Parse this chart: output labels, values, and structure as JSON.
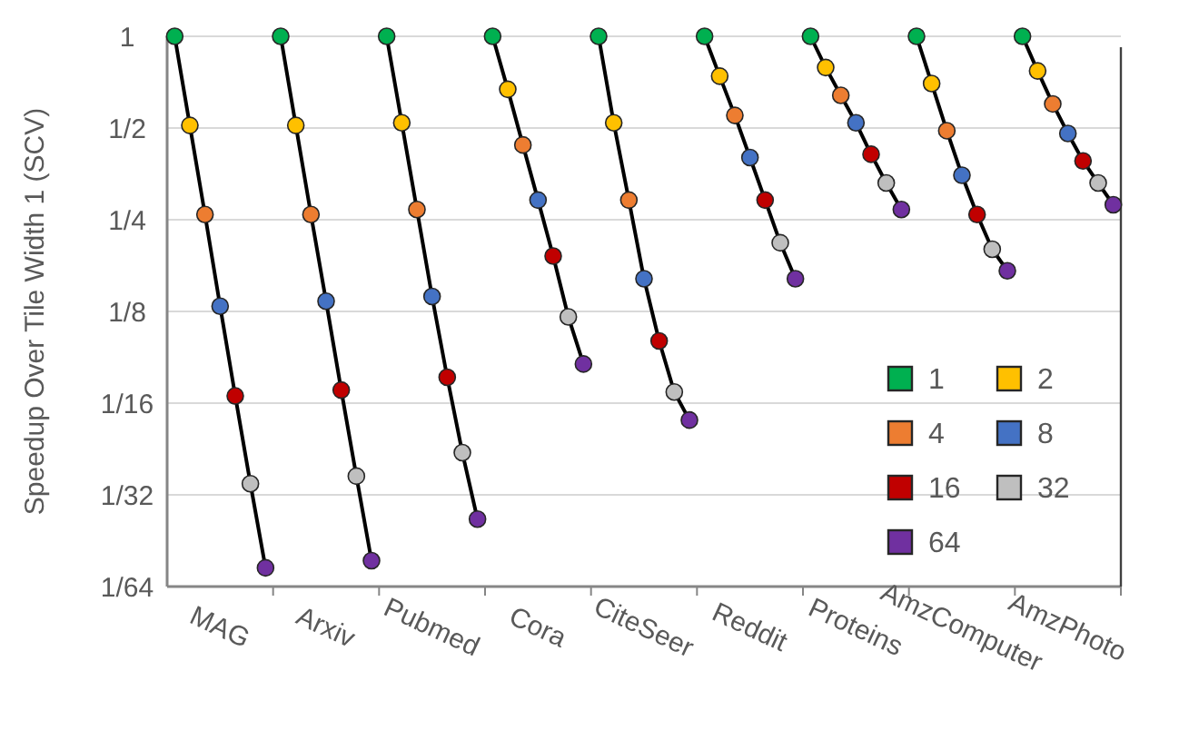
{
  "chart_data": {
    "type": "scatter",
    "ylabel": "Speedup Over Tile Width 1 (SCV)",
    "categories": [
      null,
      null,
      null,
      "MAG",
      null,
      null,
      null,
      null,
      null,
      null,
      "Arxiv",
      null,
      null,
      null,
      null,
      null,
      null,
      "Pubmed",
      null,
      null,
      null,
      null,
      null,
      null,
      "Cora",
      null,
      null,
      null,
      null,
      null,
      null,
      "CiteSeer",
      null,
      null,
      null,
      null,
      null,
      null,
      "Reddit",
      null,
      null,
      null,
      null,
      null,
      null,
      "Proteins",
      null,
      null,
      null,
      null,
      null,
      null,
      "AmzComputer",
      null,
      null,
      null,
      null,
      null,
      null,
      "AmzPhoto",
      null,
      null,
      null
    ],
    "log": "y",
    "ylim": [
      0.015625,
      1
    ],
    "yticks": [
      1,
      {
        "value": 0.5,
        "label": "1/2"
      },
      {
        "value": 0.25,
        "label": "1/4"
      },
      {
        "value": 0.125,
        "label": "1/8"
      },
      {
        "value": 0.0625,
        "label": "1/16"
      },
      {
        "value": 0.03125,
        "label": "1/32"
      },
      {
        "value": 0.015625,
        "label": "1/64"
      }
    ],
    "grid": "y",
    "legend": "bottom right",
    "marker": "circle",
    "series": [
      {
        "type": "line",
        "marker": "none",
        "color": "#000000",
        "values": [
          1,
          0.51,
          0.26,
          0.13,
          0.066,
          0.034,
          0.018,
          null,
          null,
          null,
          null,
          null,
          null,
          null,
          null,
          null,
          null,
          null,
          null,
          null,
          null,
          null,
          null,
          null,
          null,
          null,
          null,
          null,
          null,
          null,
          null,
          null,
          null,
          null,
          null,
          null,
          null,
          null,
          null,
          null,
          null,
          null,
          null,
          null,
          null,
          null,
          null,
          null,
          null,
          null,
          null,
          null,
          null,
          null,
          null,
          null,
          null,
          null,
          null,
          null,
          null,
          null,
          null
        ]
      },
      {
        "type": "line",
        "marker": "none",
        "color": "#000000",
        "values": [
          null,
          null,
          null,
          null,
          null,
          null,
          null,
          1,
          0.51,
          0.26,
          0.135,
          0.069,
          0.036,
          0.019,
          null,
          null,
          null,
          null,
          null,
          null,
          null,
          null,
          null,
          null,
          null,
          null,
          null,
          null,
          null,
          null,
          null,
          null,
          null,
          null,
          null,
          null,
          null,
          null,
          null,
          null,
          null,
          null,
          null,
          null,
          null,
          null,
          null,
          null,
          null,
          null,
          null,
          null,
          null,
          null,
          null,
          null,
          null,
          null,
          null,
          null,
          null,
          null,
          null
        ]
      },
      {
        "type": "line",
        "marker": "none",
        "color": "#000000",
        "values": [
          null,
          null,
          null,
          null,
          null,
          null,
          null,
          null,
          null,
          null,
          null,
          null,
          null,
          null,
          1,
          0.52,
          0.27,
          0.14,
          0.076,
          0.043,
          0.026,
          null,
          null,
          null,
          null,
          null,
          null,
          null,
          null,
          null,
          null,
          null,
          null,
          null,
          null,
          null,
          null,
          null,
          null,
          null,
          null,
          null,
          null,
          null,
          null,
          null,
          null,
          null,
          null,
          null,
          null,
          null,
          null,
          null,
          null,
          null,
          null,
          null,
          null,
          null,
          null,
          null,
          null
        ]
      },
      {
        "type": "line",
        "marker": "none",
        "color": "#000000",
        "values": [
          null,
          null,
          null,
          null,
          null,
          null,
          null,
          null,
          null,
          null,
          null,
          null,
          null,
          null,
          null,
          null,
          null,
          null,
          null,
          null,
          null,
          1,
          0.67,
          0.44,
          0.29,
          0.19,
          0.12,
          0.084,
          null,
          null,
          null,
          null,
          null,
          null,
          null,
          null,
          null,
          null,
          null,
          null,
          null,
          null,
          null,
          null,
          null,
          null,
          null,
          null,
          null,
          null,
          null,
          null,
          null,
          null,
          null,
          null,
          null,
          null,
          null,
          null,
          null,
          null,
          null
        ]
      },
      {
        "type": "line",
        "marker": "none",
        "color": "#000000",
        "values": [
          null,
          null,
          null,
          null,
          null,
          null,
          null,
          null,
          null,
          null,
          null,
          null,
          null,
          null,
          null,
          null,
          null,
          null,
          null,
          null,
          null,
          null,
          null,
          null,
          null,
          null,
          null,
          null,
          1,
          0.52,
          0.29,
          0.16,
          0.1,
          0.068,
          0.055,
          null,
          null,
          null,
          null,
          null,
          null,
          null,
          null,
          null,
          null,
          null,
          null,
          null,
          null,
          null,
          null,
          null,
          null,
          null,
          null,
          null,
          null,
          null,
          null,
          null,
          null,
          null,
          null
        ]
      },
      {
        "type": "line",
        "marker": "none",
        "color": "#000000",
        "values": [
          null,
          null,
          null,
          null,
          null,
          null,
          null,
          null,
          null,
          null,
          null,
          null,
          null,
          null,
          null,
          null,
          null,
          null,
          null,
          null,
          null,
          null,
          null,
          null,
          null,
          null,
          null,
          null,
          null,
          null,
          null,
          null,
          null,
          null,
          null,
          1,
          0.74,
          0.55,
          0.4,
          0.29,
          0.21,
          0.16,
          null,
          null,
          null,
          null,
          null,
          null,
          null,
          null,
          null,
          null,
          null,
          null,
          null,
          null,
          null,
          null,
          null,
          null,
          null,
          null,
          null
        ]
      },
      {
        "type": "line",
        "marker": "none",
        "color": "#000000",
        "values": [
          null,
          null,
          null,
          null,
          null,
          null,
          null,
          null,
          null,
          null,
          null,
          null,
          null,
          null,
          null,
          null,
          null,
          null,
          null,
          null,
          null,
          null,
          null,
          null,
          null,
          null,
          null,
          null,
          null,
          null,
          null,
          null,
          null,
          null,
          null,
          null,
          null,
          null,
          null,
          null,
          null,
          null,
          1,
          0.79,
          0.64,
          0.52,
          0.41,
          0.33,
          0.27,
          null,
          null,
          null,
          null,
          null,
          null,
          null,
          null,
          null,
          null,
          null,
          null,
          null,
          null
        ]
      },
      {
        "type": "line",
        "marker": "none",
        "color": "#000000",
        "values": [
          null,
          null,
          null,
          null,
          null,
          null,
          null,
          null,
          null,
          null,
          null,
          null,
          null,
          null,
          null,
          null,
          null,
          null,
          null,
          null,
          null,
          null,
          null,
          null,
          null,
          null,
          null,
          null,
          null,
          null,
          null,
          null,
          null,
          null,
          null,
          null,
          null,
          null,
          null,
          null,
          null,
          null,
          null,
          null,
          null,
          null,
          null,
          null,
          null,
          1,
          0.7,
          0.49,
          0.35,
          0.26,
          0.2,
          0.17,
          null,
          null,
          null,
          null,
          null,
          null,
          null
        ]
      },
      {
        "type": "line",
        "marker": "none",
        "color": "#000000",
        "values": [
          null,
          null,
          null,
          null,
          null,
          null,
          null,
          null,
          null,
          null,
          null,
          null,
          null,
          null,
          null,
          null,
          null,
          null,
          null,
          null,
          null,
          null,
          null,
          null,
          null,
          null,
          null,
          null,
          null,
          null,
          null,
          null,
          null,
          null,
          null,
          null,
          null,
          null,
          null,
          null,
          null,
          null,
          null,
          null,
          null,
          null,
          null,
          null,
          null,
          null,
          null,
          null,
          null,
          null,
          null,
          null,
          1,
          0.77,
          0.6,
          0.48,
          0.39,
          0.33,
          0.28
        ]
      },
      {
        "name": "1",
        "color": "#00b050",
        "values": [
          1,
          null,
          null,
          null,
          null,
          null,
          null,
          1,
          null,
          null,
          null,
          null,
          null,
          null,
          1,
          null,
          null,
          null,
          null,
          null,
          null,
          1,
          null,
          null,
          null,
          null,
          null,
          null,
          1,
          null,
          null,
          null,
          null,
          null,
          null,
          1,
          null,
          null,
          null,
          null,
          null,
          null,
          1,
          null,
          null,
          null,
          null,
          null,
          null,
          1,
          null,
          null,
          null,
          null,
          null,
          null,
          1,
          null,
          null,
          null,
          null,
          null,
          null
        ]
      },
      {
        "name": "2",
        "color": "#ffc000",
        "values": [
          null,
          0.51,
          null,
          null,
          null,
          null,
          null,
          null,
          0.51,
          null,
          null,
          null,
          null,
          null,
          null,
          0.52,
          null,
          null,
          null,
          null,
          null,
          null,
          0.67,
          null,
          null,
          null,
          null,
          null,
          null,
          0.52,
          null,
          null,
          null,
          null,
          null,
          null,
          0.74,
          null,
          null,
          null,
          null,
          null,
          null,
          0.79,
          null,
          null,
          null,
          null,
          null,
          null,
          0.7,
          null,
          null,
          null,
          null,
          null,
          null,
          0.77,
          null,
          null,
          null,
          null,
          null
        ]
      },
      {
        "name": "4",
        "color": "#ed7d31",
        "values": [
          null,
          null,
          0.26,
          null,
          null,
          null,
          null,
          null,
          null,
          0.26,
          null,
          null,
          null,
          null,
          null,
          null,
          0.27,
          null,
          null,
          null,
          null,
          null,
          null,
          0.44,
          null,
          null,
          null,
          null,
          null,
          null,
          0.29,
          null,
          null,
          null,
          null,
          null,
          null,
          0.55,
          null,
          null,
          null,
          null,
          null,
          null,
          0.64,
          null,
          null,
          null,
          null,
          null,
          null,
          0.49,
          null,
          null,
          null,
          null,
          null,
          null,
          0.6,
          null,
          null,
          null,
          null
        ]
      },
      {
        "name": "8",
        "color": "#4472c4",
        "values": [
          null,
          null,
          null,
          0.13,
          null,
          null,
          null,
          null,
          null,
          null,
          0.135,
          null,
          null,
          null,
          null,
          null,
          null,
          0.14,
          null,
          null,
          null,
          null,
          null,
          null,
          0.29,
          null,
          null,
          null,
          null,
          null,
          null,
          0.16,
          null,
          null,
          null,
          null,
          null,
          null,
          0.4,
          null,
          null,
          null,
          null,
          null,
          null,
          0.52,
          null,
          null,
          null,
          null,
          null,
          null,
          0.35,
          null,
          null,
          null,
          null,
          null,
          null,
          0.48,
          null,
          null,
          null
        ]
      },
      {
        "name": "16",
        "color": "#c00000",
        "values": [
          null,
          null,
          null,
          null,
          0.066,
          null,
          null,
          null,
          null,
          null,
          null,
          0.069,
          null,
          null,
          null,
          null,
          null,
          null,
          0.076,
          null,
          null,
          null,
          null,
          null,
          null,
          0.19,
          null,
          null,
          null,
          null,
          null,
          null,
          0.1,
          null,
          null,
          null,
          null,
          null,
          null,
          0.29,
          null,
          null,
          null,
          null,
          null,
          null,
          0.41,
          null,
          null,
          null,
          null,
          null,
          null,
          0.26,
          null,
          null,
          null,
          null,
          null,
          null,
          0.39,
          null,
          null
        ]
      },
      {
        "name": "32",
        "color": "#bfbfbf",
        "values": [
          null,
          null,
          null,
          null,
          null,
          0.034,
          null,
          null,
          null,
          null,
          null,
          null,
          0.036,
          null,
          null,
          null,
          null,
          null,
          null,
          0.043,
          null,
          null,
          null,
          null,
          null,
          null,
          0.12,
          null,
          null,
          null,
          null,
          null,
          null,
          0.068,
          null,
          null,
          null,
          null,
          null,
          null,
          0.21,
          null,
          null,
          null,
          null,
          null,
          null,
          0.33,
          null,
          null,
          null,
          null,
          null,
          null,
          0.2,
          null,
          null,
          null,
          null,
          null,
          null,
          0.33,
          null
        ]
      },
      {
        "name": "64",
        "color": "#7030a0",
        "values": [
          null,
          null,
          null,
          null,
          null,
          null,
          0.018,
          null,
          null,
          null,
          null,
          null,
          null,
          0.019,
          null,
          null,
          null,
          null,
          null,
          null,
          0.026,
          null,
          null,
          null,
          null,
          null,
          null,
          0.084,
          null,
          null,
          null,
          null,
          null,
          null,
          0.055,
          null,
          null,
          null,
          null,
          null,
          null,
          0.16,
          null,
          null,
          null,
          null,
          null,
          null,
          0.27,
          null,
          null,
          null,
          null,
          null,
          null,
          0.17,
          null,
          null,
          null,
          null,
          null,
          null,
          0.28
        ]
      }
    ]
  }
}
